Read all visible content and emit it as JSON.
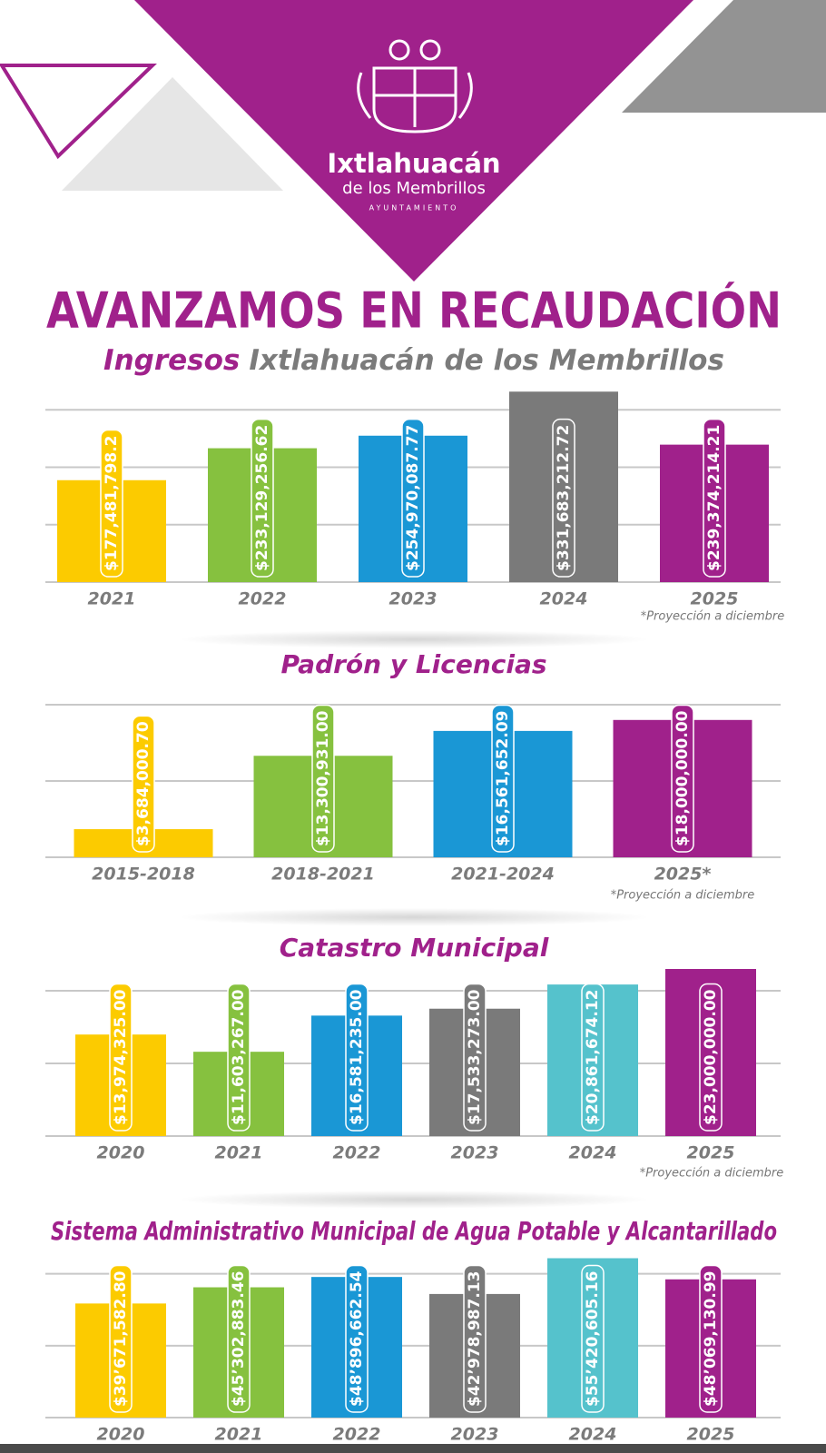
{
  "header": {
    "name": "Ixtlahuacán",
    "sub": "de los Membrillos",
    "tag": "AYUNTAMIENTO"
  },
  "title": "AVANZAMOS EN RECAUDACIÓN",
  "subtitle": [
    "Ingresos",
    "Ixtlahuacán de los Membrillos"
  ],
  "chart_data": [
    {
      "type": "bar",
      "categories": [
        "2021",
        "2022",
        "2023",
        "2024",
        "2025"
      ],
      "values": [
        177481798.2,
        233129256.62,
        254970087.77,
        331683212.72,
        239374214.21
      ],
      "value_labels": [
        "$177,481,798.2",
        "$233,129,256.62",
        "$254,970,087.77",
        "$331,683,212.72",
        "$239,374,214.21"
      ],
      "colors": [
        "#fccb00",
        "#86c13f",
        "#1a97d5",
        "#7a7a7a",
        "#a0218b"
      ],
      "ylim": [
        0,
        340000000
      ],
      "yticks": [
        0,
        100000000,
        200000000,
        300000000
      ],
      "grid": true,
      "note": "*Proyección a diciembre"
    },
    {
      "type": "bar",
      "title": "Padrón y Licencias",
      "categories": [
        "2015-2018",
        "2018-2021",
        "2021-2024",
        "2025*"
      ],
      "values": [
        3684000.7,
        13300931.0,
        16561652.09,
        18000000.0
      ],
      "value_labels": [
        "$3,684,000.70",
        "$13,300,931.00",
        "$16,561,652.09",
        "$18,000,000.00"
      ],
      "colors": [
        "#fccb00",
        "#86c13f",
        "#1a97d5",
        "#a0218b"
      ],
      "ylim": [
        0,
        20000000
      ],
      "yticks": [
        0,
        10000000,
        20000000
      ],
      "grid": true,
      "note": "*Proyección a diciembre"
    },
    {
      "type": "bar",
      "title": "Catastro Municipal",
      "categories": [
        "2020",
        "2021",
        "2022",
        "2023",
        "2024",
        "2025"
      ],
      "values": [
        13974325.0,
        11603267.0,
        16581235.0,
        17533273.0,
        20861674.12,
        23000000.0
      ],
      "value_labels": [
        "$13,974,325.00",
        "$11,603,267.00",
        "$16,581,235.00",
        "$17,533,273.00",
        "$20,861,674.12",
        "$23,000,000.00"
      ],
      "colors": [
        "#fccb00",
        "#86c13f",
        "#1a97d5",
        "#7a7a7a",
        "#55c2cc",
        "#a0218b"
      ],
      "ylim": [
        0,
        23000000
      ],
      "yticks": [
        0,
        10000000,
        20000000
      ],
      "grid": true,
      "note": "*Proyección a diciembre"
    },
    {
      "type": "bar",
      "title": "Sistema Administrativo Municipal de Agua Potable y Alcantarillado",
      "categories": [
        "2020",
        "2021",
        "2022",
        "2023",
        "2024",
        "2025"
      ],
      "values": [
        39671582.8,
        45302883.46,
        48896662.54,
        42978987.13,
        55420605.16,
        48069130.99
      ],
      "value_labels": [
        "$39’671,582.80",
        "$45’302,883.46",
        "$48’896,662.54",
        "$42’978,987.13",
        "$55’420,605.16",
        "$48’069,130.99"
      ],
      "colors": [
        "#fccb00",
        "#86c13f",
        "#1a97d5",
        "#7a7a7a",
        "#55c2cc",
        "#a0218b"
      ],
      "ylim": [
        0,
        60000000
      ],
      "yticks": [
        0,
        25000000,
        50000000
      ],
      "grid": true
    }
  ]
}
